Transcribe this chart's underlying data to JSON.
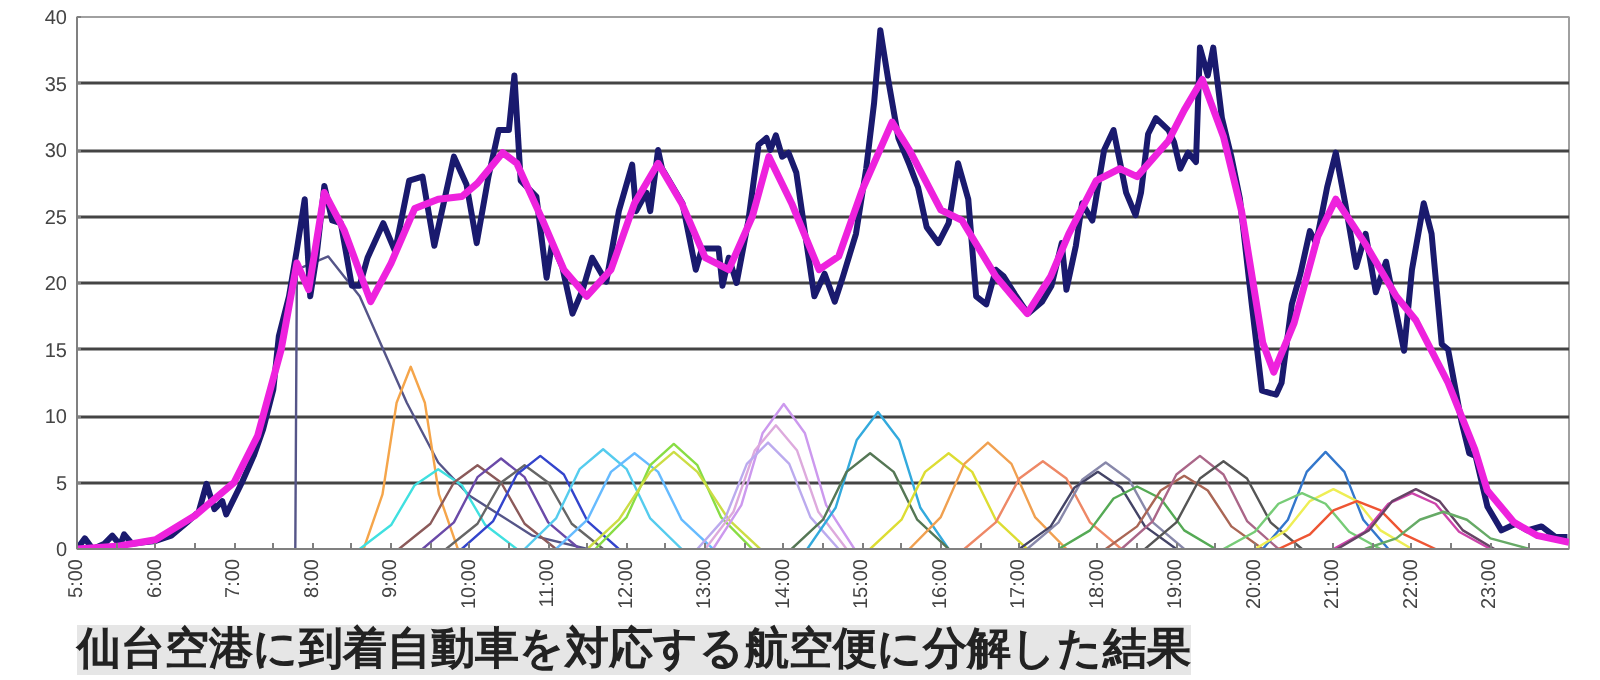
{
  "chart_data": {
    "type": "line",
    "title": "仙台空港に到着自動車を対応する航空便に分解した結果",
    "xlim": [
      5,
      24
    ],
    "ylim": [
      0,
      40
    ],
    "yticks": [
      0,
      5,
      10,
      15,
      20,
      25,
      30,
      35,
      40
    ],
    "xticks": [
      {
        "value": 5,
        "label": "5:00"
      },
      {
        "value": 5.5,
        "label": null
      },
      {
        "value": 6,
        "label": "6:00"
      },
      {
        "value": 6.5,
        "label": null
      },
      {
        "value": 7,
        "label": "7:00"
      },
      {
        "value": 7.5,
        "label": null
      },
      {
        "value": 8,
        "label": "8:00"
      },
      {
        "value": 8.5,
        "label": null
      },
      {
        "value": 9,
        "label": "9:00"
      },
      {
        "value": 9.5,
        "label": null
      },
      {
        "value": 10,
        "label": "10:00"
      },
      {
        "value": 10.5,
        "label": null
      },
      {
        "value": 11,
        "label": "11:00"
      },
      {
        "value": 11.5,
        "label": null
      },
      {
        "value": 12,
        "label": "12:00"
      },
      {
        "value": 12.5,
        "label": null
      },
      {
        "value": 13,
        "label": "13:00"
      },
      {
        "value": 13.5,
        "label": null
      },
      {
        "value": 14,
        "label": "14:00"
      },
      {
        "value": 14.5,
        "label": null
      },
      {
        "value": 15,
        "label": "15:00"
      },
      {
        "value": 15.5,
        "label": null
      },
      {
        "value": 16,
        "label": "16:00"
      },
      {
        "value": 16.5,
        "label": null
      },
      {
        "value": 17,
        "label": "17:00"
      },
      {
        "value": 17.5,
        "label": null
      },
      {
        "value": 18,
        "label": "18:00"
      },
      {
        "value": 18.5,
        "label": null
      },
      {
        "value": 19,
        "label": "19:00"
      },
      {
        "value": 19.5,
        "label": null
      },
      {
        "value": 20,
        "label": "20:00"
      },
      {
        "value": 20.5,
        "label": null
      },
      {
        "value": 21,
        "label": "21:00"
      },
      {
        "value": 21.5,
        "label": null
      },
      {
        "value": 22,
        "label": "22:00"
      },
      {
        "value": 22.5,
        "label": null
      },
      {
        "value": 23,
        "label": "23:00"
      },
      {
        "value": 23.5,
        "label": null
      }
    ],
    "grid": "y",
    "series": [
      {
        "color": "#1a1a6e",
        "x": [
          5.0,
          5.1,
          5.2,
          5.35,
          5.45,
          5.55,
          5.6,
          5.7,
          5.85,
          6.0,
          6.2,
          6.4,
          6.55,
          6.65,
          6.75,
          6.85,
          6.9,
          7.1,
          7.25,
          7.37,
          7.5,
          7.57,
          7.7,
          7.8,
          7.9,
          7.97,
          8.05,
          8.15,
          8.25,
          8.36,
          8.5,
          8.6,
          8.7,
          8.9,
          9.05,
          9.23,
          9.4,
          9.55,
          9.8,
          9.96,
          10.09,
          10.24,
          10.37,
          10.5,
          10.57,
          10.65,
          10.85,
          10.98,
          11.05,
          11.18,
          11.31,
          11.44,
          11.56,
          11.74,
          11.9,
          12.07,
          12.12,
          12.25,
          12.3,
          12.4,
          12.45,
          12.71,
          12.88,
          12.96,
          13.17,
          13.22,
          13.3,
          13.4,
          13.55,
          13.68,
          13.78,
          13.83,
          13.9,
          13.98,
          14.06,
          14.16,
          14.29,
          14.39,
          14.52,
          14.65,
          14.75,
          14.92,
          15.05,
          15.15,
          15.23,
          15.33,
          15.46,
          15.6,
          15.71,
          15.82,
          15.97,
          16.1,
          16.22,
          16.35,
          16.45,
          16.58,
          16.7,
          16.8,
          16.96,
          17.11,
          17.29,
          17.41,
          17.54,
          17.6,
          17.72,
          17.8,
          17.93,
          18.08,
          18.2,
          18.36,
          18.48,
          18.55,
          18.64,
          18.74,
          18.9,
          18.97,
          19.05,
          19.15,
          19.25,
          19.3,
          19.4,
          19.47,
          19.58,
          19.7,
          19.81,
          19.96,
          20.09,
          20.27,
          20.34,
          20.47,
          20.58,
          20.7,
          20.78,
          20.92,
          21.03,
          21.15,
          21.29,
          21.41,
          21.54,
          21.67,
          21.79,
          21.9,
          22.0,
          22.15,
          22.25,
          22.38,
          22.46,
          22.63,
          22.73,
          22.81,
          22.96,
          23.14,
          23.32,
          23.47,
          23.65,
          23.83,
          23.98
        ],
        "values": [
          0,
          0.8,
          0,
          0.4,
          1,
          0.3,
          1.1,
          0.4,
          0.5,
          0.6,
          1,
          2,
          2.8,
          4.9,
          3,
          3.6,
          2.6,
          5,
          7,
          9,
          12,
          16,
          19,
          22.5,
          26.3,
          19,
          22,
          27.3,
          24.7,
          24.5,
          19.8,
          19.8,
          21.9,
          24.5,
          22.4,
          27.7,
          28,
          22.8,
          29.5,
          27.4,
          23,
          28,
          31.5,
          31.5,
          35.6,
          27.7,
          26.5,
          20.4,
          23,
          21.2,
          17.7,
          19.5,
          21.9,
          20.1,
          25.4,
          28.9,
          25.4,
          26.8,
          25.4,
          30,
          28.6,
          26,
          21,
          22.6,
          22.6,
          19.8,
          21.9,
          20,
          24.7,
          30.4,
          30.9,
          30,
          31.1,
          29.5,
          29.8,
          28.3,
          23,
          19,
          20.7,
          18.6,
          20.4,
          23.7,
          28.6,
          33.5,
          39,
          35.3,
          30.9,
          28.9,
          27.2,
          24.2,
          23,
          24.5,
          29,
          26.3,
          19,
          18.4,
          21,
          20.5,
          19,
          17.7,
          18.6,
          19.8,
          23,
          19.5,
          22.8,
          26,
          24.7,
          30,
          31.5,
          26.8,
          25.1,
          26.8,
          31.2,
          32.4,
          31.5,
          30.6,
          28.6,
          29.8,
          29.1,
          37.7,
          35.6,
          37.7,
          32.4,
          29.5,
          26.3,
          18.4,
          11.9,
          11.6,
          12.5,
          18.4,
          20.7,
          23.9,
          23,
          27.2,
          29.8,
          26,
          21.2,
          23.7,
          19.3,
          21.6,
          18.1,
          14.9,
          21,
          26,
          23.7,
          15.4,
          15,
          9.6,
          7.2,
          7,
          3.2,
          1.4,
          1.9,
          1.4,
          1.7,
          0.9,
          0.9
        ]
      },
      {
        "color": "#ee22dd",
        "x": [
          5.0,
          5.5,
          6.0,
          6.5,
          7.0,
          7.3,
          7.6,
          7.8,
          7.95,
          8.15,
          8.4,
          8.74,
          9.0,
          9.3,
          9.6,
          9.9,
          10.1,
          10.42,
          10.6,
          10.93,
          11.2,
          11.49,
          11.8,
          12.1,
          12.4,
          12.7,
          13.0,
          13.3,
          13.6,
          13.81,
          14.1,
          14.45,
          14.7,
          15.0,
          15.38,
          15.6,
          16.0,
          16.27,
          16.7,
          17.1,
          17.4,
          17.63,
          17.98,
          18.28,
          18.5,
          18.9,
          19.1,
          19.33,
          19.6,
          19.83,
          20.1,
          20.24,
          20.5,
          20.8,
          21.03,
          21.4,
          21.8,
          22.05,
          22.46,
          22.8,
          22.96,
          23.3,
          23.6,
          24.0
        ],
        "values": [
          0,
          0.2,
          0.7,
          2.5,
          5,
          8.5,
          15,
          21.5,
          19.5,
          26.8,
          24,
          18.6,
          21.5,
          25.6,
          26.3,
          26.5,
          27.5,
          29.8,
          29,
          24.7,
          21,
          19,
          21,
          26,
          29,
          26,
          21.9,
          21,
          25,
          29.5,
          26,
          21,
          22,
          27,
          32.1,
          30,
          25.5,
          24.7,
          20.5,
          17.7,
          20.5,
          23.7,
          27.7,
          28.6,
          28,
          30.7,
          33,
          35.3,
          31,
          25.4,
          15.5,
          13.3,
          17,
          23.5,
          26.3,
          23,
          19,
          17.2,
          12.5,
          7.5,
          4.4,
          2,
          1,
          0.5
        ]
      },
      {
        "color": "#555588",
        "x": [
          7.78,
          7.8,
          8.2,
          8.6,
          9.2,
          9.6,
          10.0,
          10.8,
          11.5
        ],
        "values": [
          0,
          21,
          22,
          19,
          11,
          6.5,
          4,
          1,
          0
        ]
      },
      {
        "color": "#f5a54a",
        "x": [
          8.65,
          8.89,
          9.07,
          9.25,
          9.43,
          9.61,
          9.85
        ],
        "values": [
          0,
          4.1,
          11,
          13.7,
          11,
          4.1,
          0
        ]
      },
      {
        "color": "#40e0e0",
        "x": [
          8.6,
          9.0,
          9.3,
          9.6,
          9.9,
          10.2,
          10.6
        ],
        "values": [
          0,
          1.8,
          4.8,
          6,
          4.8,
          1.8,
          0
        ]
      },
      {
        "color": "#8b5a5a",
        "x": [
          9.1,
          9.5,
          9.8,
          10.1,
          10.4,
          10.7,
          11.1
        ],
        "values": [
          0,
          1.9,
          5,
          6.3,
          5,
          1.9,
          0
        ]
      },
      {
        "color": "#6a4aa8",
        "x": [
          9.4,
          9.8,
          10.1,
          10.4,
          10.7,
          11.0,
          11.4
        ],
        "values": [
          0,
          2,
          5.4,
          6.8,
          5.4,
          2,
          0
        ]
      },
      {
        "color": "#666666",
        "x": [
          9.7,
          10.1,
          10.4,
          10.7,
          11.0,
          11.3,
          11.7
        ],
        "values": [
          0,
          1.9,
          5,
          6.3,
          5,
          1.9,
          0
        ]
      },
      {
        "color": "#3344cc",
        "x": [
          9.9,
          10.3,
          10.6,
          10.9,
          11.2,
          11.5,
          11.9
        ],
        "values": [
          0,
          2.1,
          5.6,
          7,
          5.6,
          2.1,
          0
        ]
      },
      {
        "color": "#55ccee",
        "x": [
          10.7,
          11.1,
          11.4,
          11.7,
          12.0,
          12.3,
          12.7
        ],
        "values": [
          0,
          2.3,
          6,
          7.5,
          6,
          2.3,
          0
        ]
      },
      {
        "color": "#66bbff",
        "x": [
          11.1,
          11.5,
          11.8,
          12.1,
          12.4,
          12.7,
          13.1
        ],
        "values": [
          0,
          2.2,
          5.8,
          7.2,
          5.8,
          2.2,
          0
        ]
      },
      {
        "color": "#88dd44",
        "x": [
          11.6,
          12.0,
          12.3,
          12.6,
          12.9,
          13.2,
          13.6
        ],
        "values": [
          0,
          2.4,
          6.3,
          7.9,
          6.3,
          2.4,
          0
        ]
      },
      {
        "color": "#ccdd44",
        "x": [
          11.5,
          11.9,
          12.3,
          12.6,
          12.9,
          13.3,
          13.7
        ],
        "values": [
          0,
          2.2,
          5.8,
          7.3,
          5.8,
          2.2,
          0
        ]
      },
      {
        "color": "#cc99ee",
        "x": [
          13.1,
          13.46,
          13.73,
          14.0,
          14.27,
          14.54,
          14.9
        ],
        "values": [
          0,
          3.3,
          8.7,
          10.9,
          8.7,
          3.3,
          0
        ]
      },
      {
        "color": "#ddaadd",
        "x": [
          13.0,
          13.36,
          13.63,
          13.9,
          14.17,
          14.44,
          14.8
        ],
        "values": [
          0,
          2.8,
          7.4,
          9.3,
          7.4,
          2.8,
          0
        ]
      },
      {
        "color": "#bbaaee",
        "x": [
          12.9,
          13.26,
          13.53,
          13.8,
          14.07,
          14.34,
          14.7
        ],
        "values": [
          0,
          2.4,
          6.4,
          8,
          6.4,
          2.4,
          0
        ]
      },
      {
        "color": "#33aadd",
        "x": [
          14.3,
          14.66,
          14.93,
          15.2,
          15.47,
          15.74,
          16.1
        ],
        "values": [
          0,
          3.1,
          8.2,
          10.3,
          8.2,
          3.1,
          0
        ]
      },
      {
        "color": "#557755",
        "x": [
          14.1,
          14.5,
          14.8,
          15.1,
          15.4,
          15.7,
          16.1
        ],
        "values": [
          0,
          2.2,
          5.8,
          7.2,
          5.8,
          2.2,
          0
        ]
      },
      {
        "color": "#dddd33",
        "x": [
          15.1,
          15.5,
          15.8,
          16.1,
          16.4,
          16.7,
          17.1
        ],
        "values": [
          0,
          2.2,
          5.8,
          7.2,
          5.8,
          2.2,
          0
        ]
      },
      {
        "color": "#f0a050",
        "x": [
          15.6,
          16.0,
          16.3,
          16.6,
          16.9,
          17.2,
          17.6
        ],
        "values": [
          0,
          2.4,
          6.4,
          8,
          6.4,
          2.4,
          0
        ]
      },
      {
        "color": "#ee8866",
        "x": [
          16.3,
          16.7,
          17.0,
          17.3,
          17.6,
          17.9,
          18.3
        ],
        "values": [
          0,
          2,
          5.3,
          6.6,
          5.3,
          2,
          0
        ]
      },
      {
        "color": "#8888aa",
        "x": [
          17.1,
          17.5,
          17.8,
          18.1,
          18.4,
          18.7,
          19.1
        ],
        "values": [
          0,
          2,
          5.2,
          6.5,
          5.2,
          2,
          0
        ]
      },
      {
        "color": "#444466",
        "x": [
          17.0,
          17.4,
          17.7,
          18.0,
          18.3,
          18.6,
          19.0
        ],
        "values": [
          0,
          1.7,
          4.6,
          5.8,
          4.6,
          1.7,
          0
        ]
      },
      {
        "color": "#55aa55",
        "x": [
          17.5,
          17.9,
          18.2,
          18.5,
          18.8,
          19.1,
          19.5
        ],
        "values": [
          0,
          1.4,
          3.8,
          4.7,
          3.8,
          1.4,
          0
        ]
      },
      {
        "color": "#aa6655",
        "x": [
          18.1,
          18.5,
          18.8,
          19.1,
          19.4,
          19.7,
          20.1
        ],
        "values": [
          0,
          1.7,
          4.4,
          5.5,
          4.4,
          1.7,
          0
        ]
      },
      {
        "color": "#aa6688",
        "x": [
          18.3,
          18.7,
          19.0,
          19.3,
          19.6,
          19.9,
          20.3
        ],
        "values": [
          0,
          2.1,
          5.6,
          7,
          5.6,
          2.1,
          0
        ]
      },
      {
        "color": "#555555",
        "x": [
          18.6,
          19.0,
          19.3,
          19.6,
          19.9,
          20.2,
          20.6
        ],
        "values": [
          0,
          2,
          5.3,
          6.6,
          5.3,
          2,
          0
        ]
      },
      {
        "color": "#3377cc",
        "x": [
          20.1,
          20.42,
          20.66,
          20.9,
          21.14,
          21.38,
          21.7
        ],
        "values": [
          0,
          2.2,
          5.8,
          7.3,
          5.8,
          2.2,
          0
        ]
      },
      {
        "color": "#eeee55",
        "x": [
          20.0,
          20.4,
          20.7,
          21.0,
          21.3,
          21.6,
          22.0
        ],
        "values": [
          0,
          1.4,
          3.6,
          4.5,
          3.6,
          1.4,
          0
        ]
      },
      {
        "color": "#77cc77",
        "x": [
          19.6,
          20.0,
          20.3,
          20.6,
          20.9,
          21.2,
          21.6
        ],
        "values": [
          0,
          1.3,
          3.4,
          4.2,
          3.4,
          1.3,
          0
        ]
      },
      {
        "color": "#ee5533",
        "x": [
          20.3,
          20.7,
          21.0,
          21.3,
          21.6,
          21.9,
          22.3
        ],
        "values": [
          0,
          1.1,
          2.9,
          3.6,
          2.9,
          1.1,
          0
        ]
      },
      {
        "color": "#cc44aa",
        "x": [
          21.0,
          21.4,
          21.7,
          22.0,
          22.3,
          22.6,
          23.0
        ],
        "values": [
          0,
          1.3,
          3.4,
          4.2,
          3.4,
          1.3,
          0
        ]
      },
      {
        "color": "#664466",
        "x": [
          21.05,
          21.45,
          21.75,
          22.05,
          22.35,
          22.65,
          23.05
        ],
        "values": [
          0,
          1.4,
          3.6,
          4.5,
          3.6,
          1.4,
          0
        ]
      },
      {
        "color": "#66aa66",
        "x": [
          21.4,
          21.8,
          22.1,
          22.4,
          22.7,
          23.0,
          23.5
        ],
        "values": [
          0,
          0.8,
          2.2,
          2.8,
          2.2,
          0.8,
          0
        ]
      }
    ]
  }
}
